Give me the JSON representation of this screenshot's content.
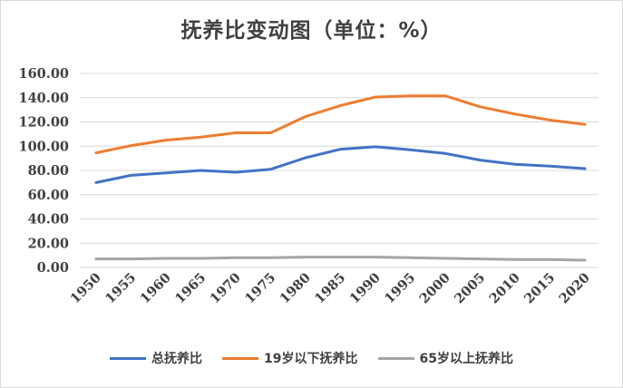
{
  "chart_data": {
    "type": "line",
    "title": "抚养比变动图（单位：%）",
    "x": [
      "1950",
      "1955",
      "1960",
      "1965",
      "1970",
      "1975",
      "1980",
      "1985",
      "1990",
      "1995",
      "2000",
      "2005",
      "2010",
      "2015",
      "2020"
    ],
    "yticks": [
      "0.00",
      "20.00",
      "40.00",
      "60.00",
      "80.00",
      "100.00",
      "120.00",
      "140.00",
      "160.00"
    ],
    "ylim": [
      0,
      160
    ],
    "grid": true,
    "legend": "bottom",
    "series": [
      {
        "name": "总抚养比",
        "color": "#4472c4",
        "values": [
          70,
          76,
          78,
          80,
          78.5,
          81,
          90.5,
          97.5,
          99.5,
          97,
          94,
          88.5,
          85,
          83.5,
          81.5
        ]
      },
      {
        "name": "19岁以下抚养比",
        "color": "#ed7d31",
        "values": [
          94.5,
          100.5,
          105,
          107.5,
          111,
          111,
          124.5,
          133.5,
          140.5,
          141.5,
          141.5,
          132.5,
          126.5,
          121.5,
          118
        ]
      },
      {
        "name": "65岁以上抚养比",
        "color": "#a5a5a5",
        "values": [
          7,
          7,
          7.5,
          7.5,
          8,
          8,
          8.5,
          8.5,
          8.5,
          8,
          7.5,
          7,
          6.5,
          6.5,
          6
        ]
      }
    ]
  }
}
